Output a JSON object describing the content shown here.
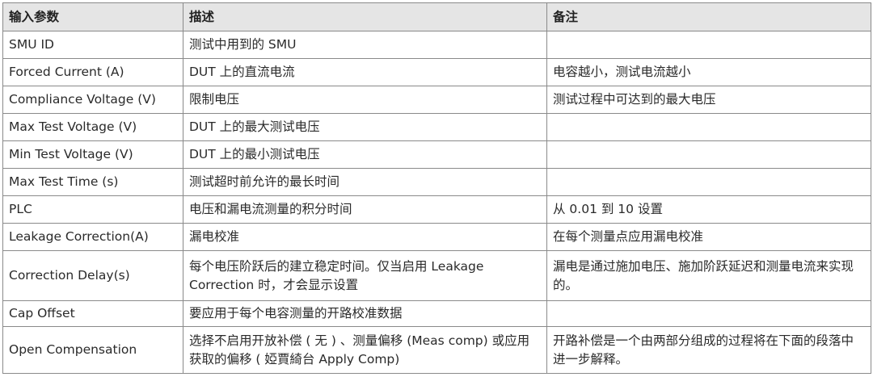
{
  "headers": [
    "输入参数",
    "描述",
    "备注"
  ],
  "rows": [
    {
      "param": "SMU ID",
      "desc": "测试中用到的 SMU",
      "note": ""
    },
    {
      "param": "Forced Current (A)",
      "desc": "DUT 上的直流电流",
      "note": "电容越小，测试电流越小"
    },
    {
      "param": "Compliance Voltage (V)",
      "desc": "限制电压",
      "note": "测试过程中可达到的最大电压"
    },
    {
      "param": "Max Test Voltage (V)",
      "desc": "DUT 上的最大测试电压",
      "note": ""
    },
    {
      "param": "Min Test Voltage (V)",
      "desc": "DUT 上的最小测试电压",
      "note": ""
    },
    {
      "param": "Max Test Time (s)",
      "desc": "测试超时前允许的最长时间",
      "note": ""
    },
    {
      "param": "PLC",
      "desc": "电压和漏电流测量的积分时间",
      "note": "从 0.01 到 10 设置"
    },
    {
      "param": "Leakage Correction(A)",
      "desc": "漏电校准",
      "note": "在每个测量点应用漏电校准"
    },
    {
      "param": "Correction Delay(s)",
      "desc": "每个电压阶跃后的建立稳定时间。仅当启用 Leakage Correction 时，才会显示设置",
      "note": "漏电是通过施加电压、施加阶跃延迟和测量电流来实现的。"
    },
    {
      "param": "Cap Offset",
      "desc": "要应用于每个电容测量的开路校准数据",
      "note": ""
    },
    {
      "param": "Open Compensation",
      "desc": "选择不启用开放补偿 ( 无 ) 、测量偏移 (Meas comp) 或应用获取的偏移 ( 婭賈綺台 Apply Comp)",
      "note": "开路补偿是一个由两部分组成的过程将在下面的段落中进一步解释。"
    }
  ]
}
